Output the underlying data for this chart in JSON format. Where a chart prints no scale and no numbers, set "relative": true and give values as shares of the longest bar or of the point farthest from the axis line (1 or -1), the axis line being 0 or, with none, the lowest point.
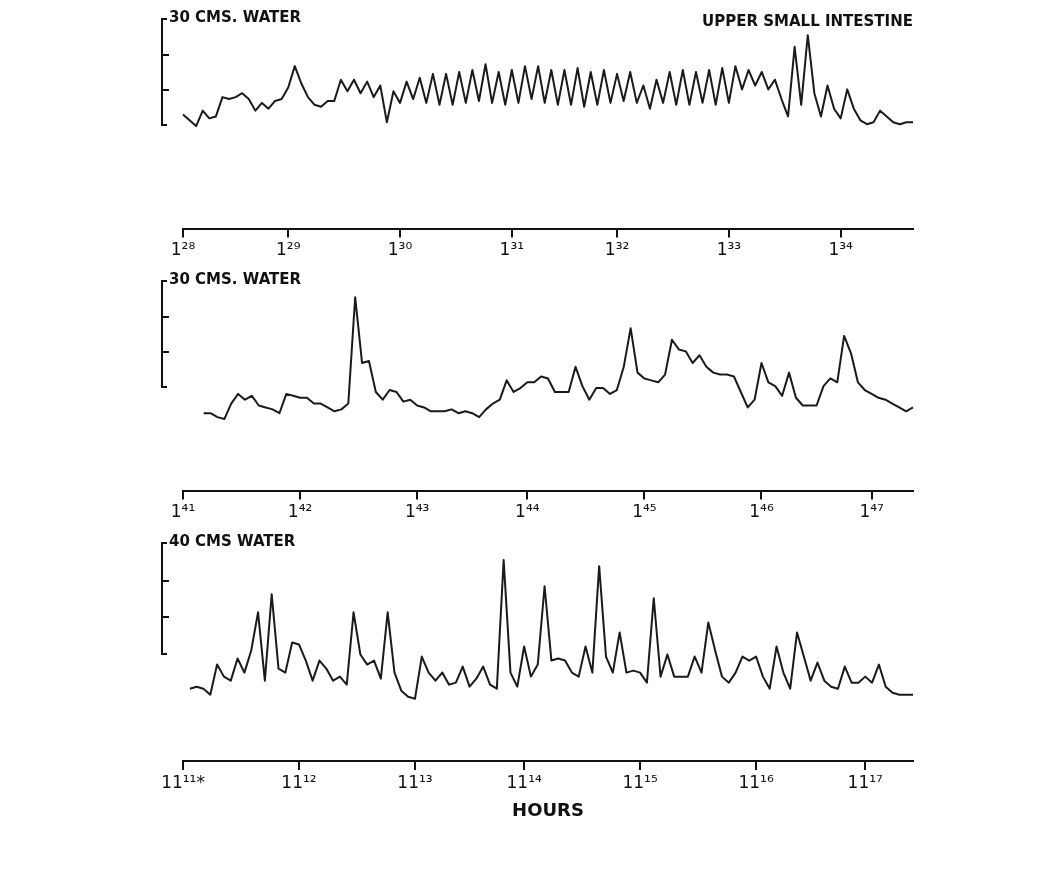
{
  "chart_data": [
    {
      "type": "line",
      "title": "UPPER SMALL INTESTINE",
      "ylabel": "30 CMS. WATER",
      "relative": true,
      "categories": [
        "1²⁸",
        null,
        null,
        null,
        null,
        null,
        null,
        null,
        null,
        null,
        null,
        null,
        null,
        null,
        null,
        null,
        "1²⁹",
        null,
        null,
        null,
        null,
        null,
        null,
        null,
        null,
        null,
        null,
        null,
        null,
        null,
        null,
        null,
        null,
        "1³⁰",
        null,
        null,
        null,
        null,
        null,
        null,
        null,
        null,
        null,
        null,
        null,
        null,
        null,
        null,
        null,
        null,
        "1³¹",
        null,
        null,
        null,
        null,
        null,
        null,
        null,
        null,
        null,
        null,
        null,
        null,
        null,
        null,
        null,
        "1³²",
        null,
        null,
        null,
        null,
        null,
        null,
        null,
        null,
        null,
        null,
        null,
        null,
        null,
        null,
        null,
        null,
        "1³³",
        null,
        null,
        null,
        null,
        null,
        null,
        null,
        null,
        null,
        null,
        null,
        null,
        null,
        null,
        null,
        null,
        "1³⁴",
        null,
        null,
        null,
        null,
        null,
        null,
        null,
        null,
        null,
        null,
        null
      ],
      "series": [
        {
          "color": "#1a1a1a",
          "values": [
            0.59,
            0.56,
            0.53,
            0.61,
            0.57,
            0.58,
            0.68,
            0.67,
            0.68,
            0.7,
            0.67,
            0.61,
            0.65,
            0.62,
            0.66,
            0.67,
            0.73,
            0.84,
            0.75,
            0.68,
            0.64,
            0.63,
            0.66,
            0.66,
            0.77,
            0.71,
            0.77,
            0.7,
            0.76,
            0.68,
            0.74,
            0.55,
            0.71,
            0.65,
            0.76,
            0.67,
            0.78,
            0.65,
            0.8,
            0.64,
            0.8,
            0.64,
            0.81,
            0.65,
            0.82,
            0.66,
            0.85,
            0.65,
            0.81,
            0.64,
            0.82,
            0.65,
            0.84,
            0.67,
            0.84,
            0.65,
            0.82,
            0.64,
            0.82,
            0.64,
            0.83,
            0.63,
            0.81,
            0.64,
            0.82,
            0.65,
            0.8,
            0.66,
            0.81,
            0.65,
            0.74,
            0.62,
            0.77,
            0.65,
            0.81,
            0.64,
            0.82,
            0.64,
            0.81,
            0.65,
            0.82,
            0.64,
            0.83,
            0.65,
            0.84,
            0.72,
            0.82,
            0.74,
            0.81,
            0.72,
            0.77,
            0.67,
            0.58,
            0.94,
            0.64,
            1,
            0.7,
            0.58,
            0.74,
            0.62,
            0.57,
            0.72,
            0.62,
            0.56,
            0.54,
            0.55,
            0.61,
            0.58,
            0.55,
            0.54,
            0.55,
            0.55
          ]
        }
      ]
    },
    {
      "type": "line",
      "ylabel": "30 CMS. WATER",
      "relative": true,
      "categories": [
        "1⁴¹",
        null,
        null,
        null,
        null,
        null,
        null,
        null,
        null,
        null,
        null,
        null,
        null,
        null,
        null,
        null,
        null,
        "1⁴²",
        null,
        null,
        null,
        null,
        null,
        null,
        null,
        null,
        null,
        null,
        null,
        null,
        null,
        null,
        null,
        null,
        "1⁴³",
        null,
        null,
        null,
        null,
        null,
        null,
        null,
        null,
        null,
        null,
        null,
        null,
        null,
        null,
        null,
        "1⁴⁴",
        null,
        null,
        null,
        null,
        null,
        null,
        null,
        null,
        null,
        null,
        null,
        null,
        null,
        null,
        null,
        null,
        "1⁴⁵",
        null,
        null,
        null,
        null,
        null,
        null,
        null,
        null,
        null,
        null,
        null,
        null,
        null,
        null,
        null,
        null,
        "1⁴⁶",
        null,
        null,
        null,
        null,
        null,
        null,
        null,
        null,
        null,
        null,
        null,
        null,
        null,
        null,
        null,
        "1⁴⁷",
        null,
        null,
        null,
        null,
        null,
        null
      ],
      "series": [
        {
          "color": "#1a1a1a",
          "values": [
            null,
            null,
            null,
            0.4,
            0.4,
            0.38,
            0.37,
            0.45,
            0.5,
            0.47,
            0.49,
            0.44,
            0.43,
            0.42,
            0.4,
            0.5,
            0.49,
            0.48,
            0.48,
            0.45,
            0.45,
            0.43,
            0.41,
            0.42,
            0.45,
            1,
            0.66,
            0.67,
            0.51,
            0.47,
            0.52,
            0.51,
            0.46,
            0.47,
            0.44,
            0.43,
            0.41,
            0.41,
            0.41,
            0.42,
            0.4,
            0.41,
            0.4,
            0.38,
            0.42,
            0.45,
            0.47,
            0.57,
            0.51,
            0.53,
            0.56,
            0.56,
            0.59,
            0.58,
            0.51,
            0.51,
            0.51,
            0.64,
            0.54,
            0.47,
            0.53,
            0.53,
            0.5,
            0.52,
            0.64,
            0.84,
            0.61,
            0.58,
            0.57,
            0.56,
            0.6,
            0.78,
            0.73,
            0.72,
            0.66,
            0.7,
            0.64,
            0.61,
            0.6,
            0.6,
            0.59,
            0.51,
            0.43,
            0.47,
            0.66,
            0.56,
            0.54,
            0.49,
            0.61,
            0.48,
            0.44,
            0.44,
            0.44,
            0.54,
            0.58,
            0.56,
            0.8,
            0.71,
            0.56,
            0.52,
            0.5,
            0.48,
            0.47,
            0.45,
            0.43,
            0.41,
            0.43
          ]
        }
      ]
    },
    {
      "type": "line",
      "ylabel": "40 CMS WATER",
      "xlabel": "HOURS",
      "relative": true,
      "categories": [
        "11¹¹*",
        null,
        null,
        null,
        null,
        null,
        null,
        null,
        null,
        null,
        null,
        null,
        null,
        null,
        null,
        null,
        null,
        "11¹²",
        null,
        null,
        null,
        null,
        null,
        null,
        null,
        null,
        null,
        null,
        null,
        null,
        null,
        null,
        null,
        null,
        "11¹³",
        null,
        null,
        null,
        null,
        null,
        null,
        null,
        null,
        null,
        null,
        null,
        null,
        null,
        null,
        null,
        "11¹⁴",
        null,
        null,
        null,
        null,
        null,
        null,
        null,
        null,
        null,
        null,
        null,
        null,
        null,
        null,
        null,
        null,
        "11¹⁵",
        null,
        null,
        null,
        null,
        null,
        null,
        null,
        null,
        null,
        null,
        null,
        null,
        null,
        null,
        null,
        null,
        "11¹⁶",
        null,
        null,
        null,
        null,
        null,
        null,
        null,
        null,
        null,
        null,
        null,
        null,
        null,
        null,
        null,
        "11¹⁷",
        null,
        null,
        null,
        null,
        null,
        null,
        null
      ],
      "series": [
        {
          "color": "#1a1a1a",
          "values": [
            null,
            0.36,
            0.37,
            0.36,
            0.33,
            0.48,
            0.42,
            0.4,
            0.51,
            0.44,
            0.55,
            0.74,
            0.4,
            0.83,
            0.46,
            0.44,
            0.59,
            0.58,
            0.5,
            0.4,
            0.5,
            0.46,
            0.4,
            0.42,
            0.38,
            0.74,
            0.53,
            0.48,
            0.5,
            0.41,
            0.74,
            0.44,
            0.35,
            0.32,
            0.31,
            0.52,
            0.44,
            0.4,
            0.44,
            0.38,
            0.39,
            0.47,
            0.37,
            0.41,
            0.47,
            0.38,
            0.36,
            1,
            0.44,
            0.37,
            0.57,
            0.42,
            0.48,
            0.87,
            0.5,
            0.51,
            0.5,
            0.44,
            0.42,
            0.57,
            0.44,
            0.97,
            0.52,
            0.44,
            0.64,
            0.44,
            0.45,
            0.44,
            0.39,
            0.81,
            0.42,
            0.53,
            0.42,
            0.42,
            0.42,
            0.52,
            0.44,
            0.69,
            0.55,
            0.42,
            0.39,
            0.44,
            0.52,
            0.5,
            0.52,
            0.42,
            0.36,
            0.57,
            0.44,
            0.36,
            0.64,
            0.52,
            0.4,
            0.49,
            0.4,
            0.37,
            0.36,
            0.47,
            0.39,
            0.39,
            0.42,
            0.39,
            0.48,
            0.37,
            0.34,
            0.33,
            0.33,
            0.33
          ]
        }
      ]
    }
  ]
}
